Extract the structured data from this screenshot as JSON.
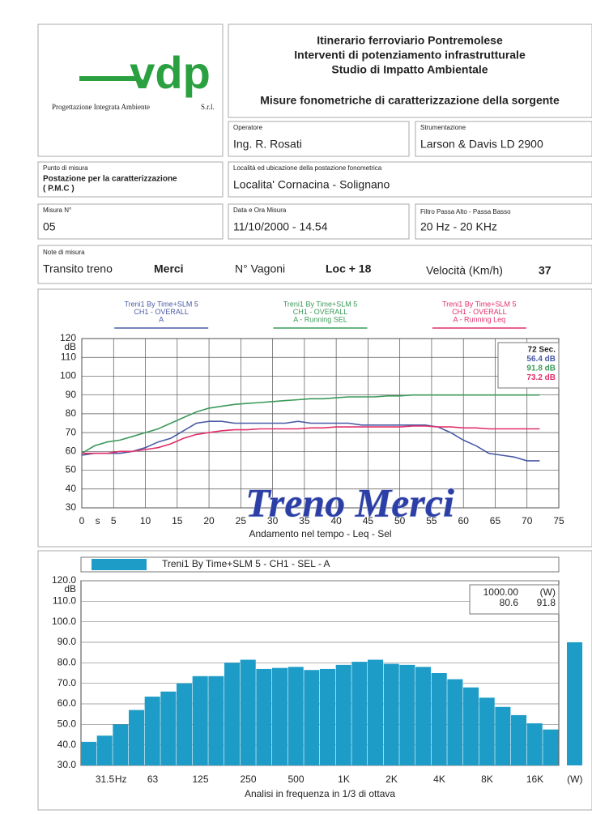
{
  "header": {
    "logo": "vdp",
    "company": "Progettazione Integrata Ambiente",
    "company_suffix": "S.r.l.",
    "title": [
      "Itinerario ferroviario Pontremolese",
      "Interventi di potenziamento infrastrutturale",
      "Studio di Impatto Ambientale"
    ],
    "subtitle": "Misure fonometriche di caratterizzazione della sorgente"
  },
  "fields": {
    "operatore": {
      "label": "Operatore",
      "value": "Ing. R. Rosati"
    },
    "strumentazione": {
      "label": "Strumentazione",
      "value": "Larson & Davis LD 2900"
    },
    "punto": {
      "label": "Punto di misura",
      "value": [
        "Postazione per la caratterizzazione",
        "( P.M.C )"
      ]
    },
    "localita": {
      "label": "Località ed ubicazione della postazione fonometrica",
      "value": "Localita' Cornacina - Solignano"
    },
    "misura": {
      "label": "Misura N°",
      "value": "05"
    },
    "data": {
      "label": "Data e Ora Misura",
      "value": "11/10/2000 - 14.54"
    },
    "filtro": {
      "label": "Filtro Passa Alto - Passa Basso",
      "value": "20 Hz - 20 KHz"
    }
  },
  "notes": {
    "label": "Note di misura",
    "items": [
      "Transito treno",
      "Merci",
      "N° Vagoni",
      "Loc + 18",
      "Velocità (Km/h)",
      "37"
    ]
  },
  "chart_data": [
    {
      "type": "line",
      "x": [
        0,
        2,
        4,
        6,
        8,
        10,
        12,
        14,
        16,
        18,
        20,
        22,
        24,
        26,
        28,
        30,
        32,
        34,
        36,
        38,
        40,
        42,
        44,
        46,
        48,
        50,
        52,
        54,
        56,
        58,
        60,
        62,
        64,
        66,
        68,
        70,
        72
      ],
      "xlim": [
        0,
        75
      ],
      "xticks": [
        0,
        5,
        10,
        15,
        20,
        25,
        30,
        35,
        40,
        45,
        50,
        55,
        60,
        65,
        70,
        75
      ],
      "x_unit": "s",
      "ylim": [
        30,
        120
      ],
      "yticks": [
        30,
        40,
        50,
        60,
        70,
        80,
        90,
        100,
        110,
        120
      ],
      "y_unit": "dB",
      "xlabel": "Andamento nel tempo - Leq - Sel",
      "grid": true,
      "series": [
        {
          "source": [
            "Treni1 By Time+SLM 5",
            "CH1 - OVERALL"
          ],
          "name": "A",
          "color": "#4b5ba6",
          "values": [
            58,
            59,
            59,
            59,
            60,
            62,
            65,
            67,
            71,
            75,
            76,
            76,
            75,
            75,
            75,
            75,
            75,
            76,
            75,
            75,
            75,
            75,
            74,
            74,
            74,
            74,
            74,
            74,
            73,
            70,
            66,
            63,
            59,
            58,
            57,
            55,
            55
          ]
        },
        {
          "source": [
            "Treni1 By Time+SLM 5",
            "CH1 - OVERALL"
          ],
          "name": "A - Running SEL",
          "color": "#3c9a5a",
          "values": [
            59,
            63,
            65,
            66,
            68,
            70,
            72,
            75,
            78,
            81,
            83,
            84,
            85,
            85.5,
            86,
            86.5,
            87,
            87.5,
            88,
            88,
            88.5,
            89,
            89,
            89,
            89.5,
            89.5,
            90,
            90,
            90,
            90,
            90,
            90,
            90,
            90,
            90,
            90,
            90
          ]
        },
        {
          "source": [
            "Treni1 By Time+SLM 5",
            "CH1 - OVERALL"
          ],
          "name": "A - Running Leq",
          "color": "#e0306a",
          "values": [
            59,
            59,
            59,
            60,
            60,
            61,
            62,
            64,
            67,
            69,
            70,
            71,
            71.5,
            71.5,
            72,
            72,
            72,
            72,
            72.5,
            72.5,
            73,
            73,
            73,
            73,
            73,
            73,
            73.5,
            73.5,
            73,
            73,
            72.5,
            72.5,
            72,
            72,
            72,
            72,
            72
          ]
        }
      ],
      "readout": [
        "72 Sec.",
        "56.4 dB",
        "91.8 dB",
        "73.2 dB"
      ],
      "annotation": "Treno Merci"
    },
    {
      "type": "bar",
      "categories": [
        null,
        "31.5",
        null,
        null,
        "63",
        null,
        null,
        "125",
        null,
        null,
        "250",
        null,
        null,
        "500",
        null,
        null,
        "1K",
        null,
        null,
        "2K",
        null,
        null,
        "4K",
        null,
        null,
        "8K",
        null,
        null,
        "16K",
        null,
        "(W)"
      ],
      "x_unit": "Hz",
      "series": [
        {
          "name": "Treni1 By Time+SLM 5 - CH1 - SEL - A",
          "color": "#1e9cc8",
          "values": [
            41.5,
            44.5,
            50,
            57,
            63.5,
            66,
            70,
            73.5,
            73.5,
            80,
            81.5,
            77,
            77.5,
            78,
            76.5,
            77,
            79,
            80.5,
            81.5,
            79.5,
            79,
            78,
            75,
            72,
            68,
            63,
            58.5,
            54.5,
            50.5,
            47.5,
            90
          ]
        }
      ],
      "ylim": [
        30,
        120
      ],
      "yticks": [
        {
          "value": 30,
          "label": "30.0"
        },
        {
          "value": 40,
          "label": "40.0"
        },
        {
          "value": 50,
          "label": "50.0"
        },
        {
          "value": 60,
          "label": "60.0"
        },
        {
          "value": 70,
          "label": "70.0"
        },
        {
          "value": 80,
          "label": "80.0"
        },
        {
          "value": 90,
          "label": "90.0"
        },
        {
          "value": 100,
          "label": "100.0"
        },
        {
          "value": 110,
          "label": "110.0"
        },
        {
          "value": 120,
          "label": "120.0"
        }
      ],
      "y_unit": "dB",
      "grid": true,
      "readout": [
        "1000.00",
        "(W)",
        "80.6",
        "91.8"
      ],
      "xlabel": "Analisi in frequenza in 1/3 di ottava"
    }
  ]
}
